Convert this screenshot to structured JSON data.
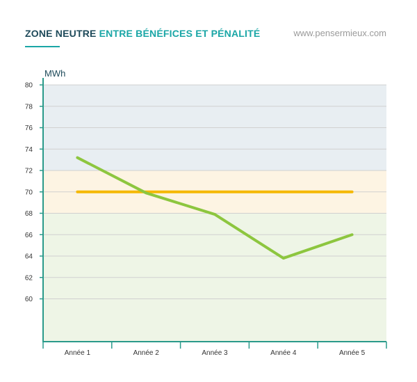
{
  "header": {
    "title_part1": "ZONE NEUTRE",
    "title_part2": "ENTRE BÉNÉFICES ET PÉNALITÉ",
    "website": "www.pensermieux.com"
  },
  "colors": {
    "title_dark": "#1e4a5a",
    "title_accent": "#1aa6a6",
    "zone_top": "#e8eef2",
    "zone_middle": "#fdf4e3",
    "zone_bottom": "#eef5e6",
    "reference_line": "#f5b800",
    "data_line": "#8dc63f",
    "axis": "#2a9a8a",
    "grid": "#d0d0d0"
  },
  "chart_data": {
    "type": "line",
    "categories": [
      "Année 1",
      "Année 2",
      "Année 3",
      "Année 4",
      "Année 5"
    ],
    "ylabel": "MWh",
    "ylim": [
      56,
      80
    ],
    "yticks": [
      60,
      62,
      64,
      66,
      68,
      70,
      72,
      74,
      76,
      78,
      80
    ],
    "grid": true,
    "zones": [
      {
        "from": 72,
        "to": 80,
        "color": "#e8eef2"
      },
      {
        "from": 68,
        "to": 72,
        "color": "#fdf4e3"
      },
      {
        "from": 56,
        "to": 68,
        "color": "#eef5e6"
      }
    ],
    "series": [
      {
        "values": [
          73.2,
          69.9,
          67.9,
          63.8,
          66.0
        ],
        "color": "#8dc63f"
      },
      {
        "values": [
          70,
          70,
          70,
          70,
          70
        ],
        "color": "#f5b800"
      }
    ]
  }
}
